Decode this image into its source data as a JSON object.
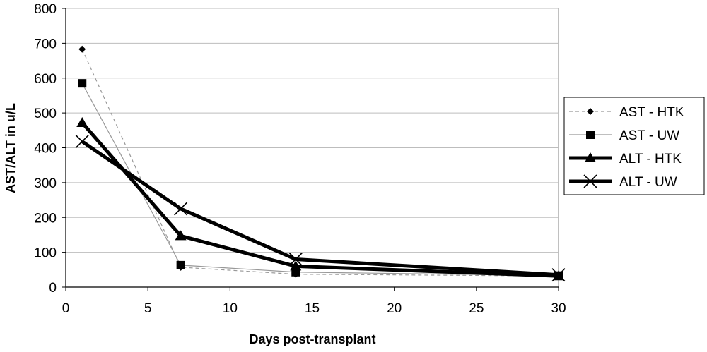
{
  "chart_data": {
    "type": "line",
    "xlabel": "Days post-transplant",
    "ylabel": "AST/ALT in u/L",
    "xlim": [
      0,
      30
    ],
    "ylim": [
      0,
      800
    ],
    "xticks": [
      0,
      5,
      10,
      15,
      20,
      25,
      30
    ],
    "yticks": [
      0,
      100,
      200,
      300,
      400,
      500,
      600,
      700,
      800
    ],
    "grid": "horizontal",
    "legend_position": "right",
    "x": [
      1,
      7,
      14,
      30
    ],
    "series": [
      {
        "name": "AST - HTK",
        "values": [
          683,
          57,
          37,
          32
        ],
        "marker": "diamond",
        "line": "dashed",
        "color": "#999999"
      },
      {
        "name": "AST - UW",
        "values": [
          585,
          63,
          43,
          33
        ],
        "marker": "square",
        "line": "thin",
        "color": "#999999"
      },
      {
        "name": "ALT - HTK",
        "values": [
          472,
          147,
          60,
          32
        ],
        "marker": "triangle",
        "line": "thick",
        "color": "#000000"
      },
      {
        "name": "ALT - UW",
        "values": [
          418,
          225,
          80,
          35
        ],
        "marker": "x",
        "line": "thick",
        "color": "#000000"
      }
    ]
  }
}
